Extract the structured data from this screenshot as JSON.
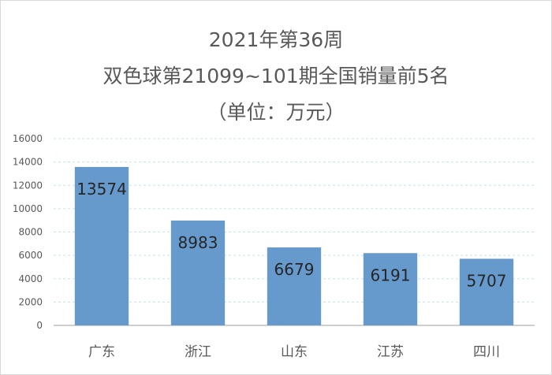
{
  "chart_data": {
    "type": "bar",
    "title_lines": [
      "2021年第36周",
      "双色球第21099~101期全国销量前5名",
      "（单位：万元）"
    ],
    "categories": [
      "广东",
      "浙江",
      "山东",
      "江苏",
      "四川"
    ],
    "values": [
      13574,
      8983,
      6679,
      6191,
      5707
    ],
    "data_labels": [
      "13574",
      "8983",
      "6679",
      "6191",
      "5707"
    ],
    "ylim": [
      0,
      16000
    ],
    "yticks": [
      "0",
      "2000",
      "4000",
      "6000",
      "8000",
      "10000",
      "12000",
      "14000",
      "16000"
    ],
    "grid": true,
    "legend": "none",
    "colors": {
      "bar": "#6699cc",
      "grid": "#c5e3ea",
      "axis": "#bfbfbf",
      "text": "#595959",
      "label": "#262626"
    }
  }
}
